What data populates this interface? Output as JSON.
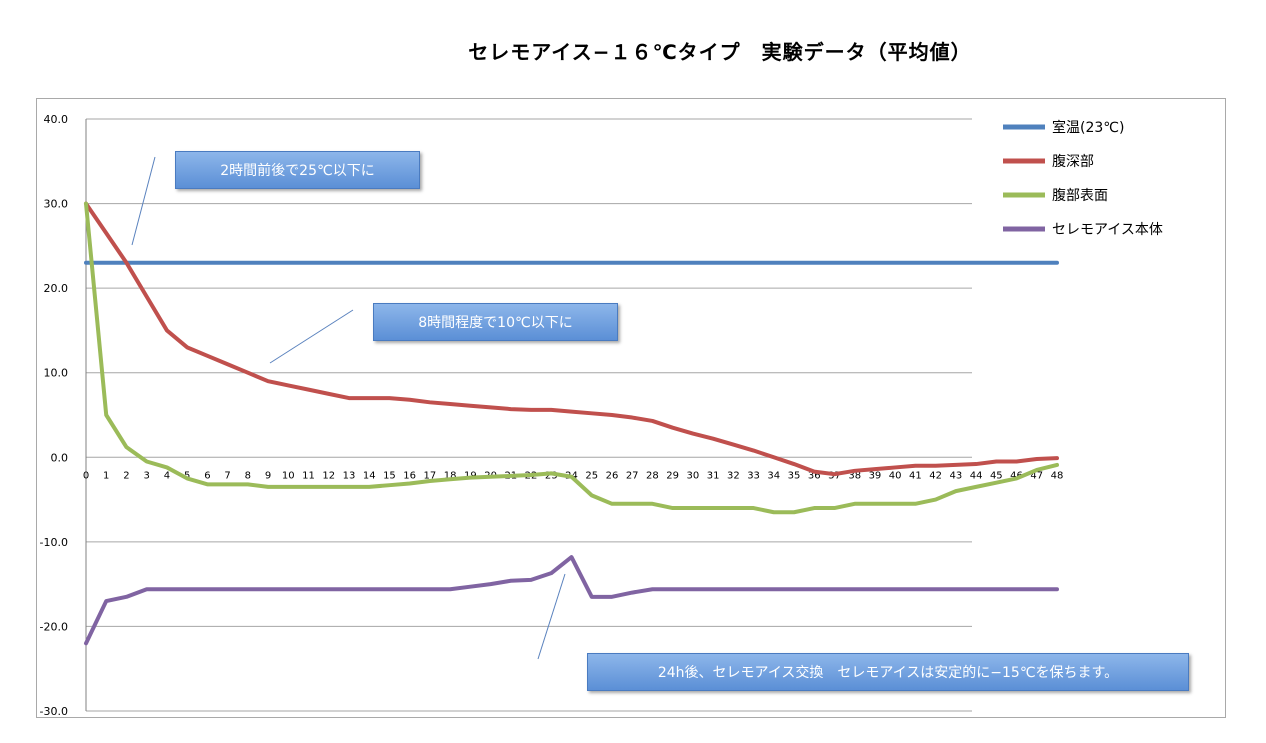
{
  "title": "セレモアイス−１６℃タイプ　実験データ（平均値）",
  "chart_data": {
    "type": "line",
    "title": "セレモアイス−１６℃タイプ　実験データ（平均値）",
    "x": [
      0,
      1,
      2,
      3,
      4,
      5,
      6,
      7,
      8,
      9,
      10,
      11,
      12,
      13,
      14,
      15,
      16,
      17,
      18,
      19,
      20,
      21,
      22,
      23,
      24,
      25,
      26,
      27,
      28,
      29,
      30,
      31,
      32,
      33,
      34,
      35,
      36,
      37,
      38,
      39,
      40,
      41,
      42,
      43,
      44,
      45,
      46,
      47,
      48
    ],
    "x_tick_labels": [
      "0",
      "1",
      "2",
      "3",
      "4",
      "5",
      "6",
      "7",
      "8",
      "9",
      "10",
      "11",
      "12",
      "13",
      "14",
      "15",
      "16",
      "17",
      "18",
      "19",
      "20",
      "21",
      "22",
      "23",
      "24",
      "25",
      "26",
      "27",
      "28",
      "29",
      "30",
      "31",
      "32",
      "33",
      "34",
      "35",
      "36",
      "37",
      "38",
      "39",
      "40",
      "41",
      "42",
      "43",
      "44",
      "45",
      "46",
      "47",
      "48"
    ],
    "ylim": [
      -30,
      40
    ],
    "y_tick_labels": [
      "40.0",
      "30.0",
      "20.0",
      "10.0",
      "0.0",
      "-10.0",
      "-20.0",
      "-30.0"
    ],
    "grid": true,
    "legend_position": "top-right",
    "series": [
      {
        "name": "室温(23℃)",
        "color": "#4f81bd",
        "values": [
          23,
          23,
          23,
          23,
          23,
          23,
          23,
          23,
          23,
          23,
          23,
          23,
          23,
          23,
          23,
          23,
          23,
          23,
          23,
          23,
          23,
          23,
          23,
          23,
          23,
          23,
          23,
          23,
          23,
          23,
          23,
          23,
          23,
          23,
          23,
          23,
          23,
          23,
          23,
          23,
          23,
          23,
          23,
          23,
          23,
          23,
          23,
          23,
          23
        ]
      },
      {
        "name": "腹深部",
        "color": "#c0504d",
        "values": [
          30,
          26.5,
          23,
          19,
          15,
          13,
          12,
          11,
          10,
          9,
          8.5,
          8,
          7.5,
          7,
          7,
          7,
          6.8,
          6.5,
          6.3,
          6.1,
          5.9,
          5.7,
          5.6,
          5.6,
          5.4,
          5.2,
          5,
          4.7,
          4.3,
          3.5,
          2.8,
          2.2,
          1.5,
          0.8,
          0,
          -0.8,
          -1.7,
          -2,
          -1.6,
          -1.4,
          -1.2,
          -1,
          -1,
          -0.9,
          -0.8,
          -0.5,
          -0.5,
          -0.2,
          -0.1
        ]
      },
      {
        "name": "腹部表面",
        "color": "#9bbb59",
        "values": [
          30,
          5,
          1.2,
          -0.5,
          -1.2,
          -2.5,
          -3.2,
          -3.2,
          -3.2,
          -3.5,
          -3.5,
          -3.5,
          -3.5,
          -3.5,
          -3.5,
          -3.3,
          -3.1,
          -2.8,
          -2.6,
          -2.4,
          -2.3,
          -2.2,
          -2.1,
          -1.9,
          -2.3,
          -4.5,
          -5.5,
          -5.5,
          -5.5,
          -6,
          -6,
          -6,
          -6,
          -6,
          -6.5,
          -6.5,
          -6,
          -6,
          -5.5,
          -5.5,
          -5.5,
          -5.5,
          -5,
          -4,
          -3.5,
          -3,
          -2.5,
          -1.5,
          -0.9
        ]
      },
      {
        "name": "セレモアイス本体",
        "color": "#8064a2",
        "values": [
          -22,
          -17,
          -16.5,
          -15.6,
          -15.6,
          -15.6,
          -15.6,
          -15.6,
          -15.6,
          -15.6,
          -15.6,
          -15.6,
          -15.6,
          -15.6,
          -15.6,
          -15.6,
          -15.6,
          -15.6,
          -15.6,
          -15.3,
          -15,
          -14.6,
          -14.5,
          -13.7,
          -11.8,
          -16.5,
          -16.5,
          -16,
          -15.6,
          -15.6,
          -15.6,
          -15.6,
          -15.6,
          -15.6,
          -15.6,
          -15.6,
          -15.6,
          -15.6,
          -15.6,
          -15.6,
          -15.6,
          -15.6,
          -15.6,
          -15.6,
          -15.6,
          -15.6,
          -15.6,
          -15.6,
          -15.6
        ]
      }
    ],
    "annotations": [
      "2時間前後で25℃以下に",
      "8時間程度で10℃以下に",
      "24h後、セレモアイス交換　セレモアイスは安定的に−15℃を保ちます。"
    ]
  }
}
